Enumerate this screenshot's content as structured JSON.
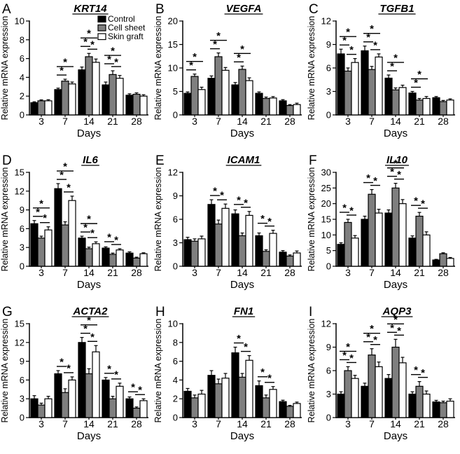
{
  "figure": {
    "ylabel": "Relative mRNA expression",
    "xlabel": "Days",
    "legend": [
      {
        "label": "Control",
        "color": "#000000"
      },
      {
        "label": "Cell sheet",
        "color": "#7f7f7f"
      },
      {
        "label": "Skin graft",
        "color": "#ffffff"
      }
    ]
  },
  "chart_data": [
    {
      "type": "bar",
      "panel": "A",
      "title": "KRT14",
      "xlabel": "Days",
      "ylabel": "Relative mRNA expression",
      "categories": [
        "3",
        "7",
        "14",
        "21",
        "28"
      ],
      "ylim": [
        0,
        10
      ],
      "ytick_step": 2,
      "grid": false,
      "legend_position": "top-right-inside",
      "show_legend": true,
      "series": [
        {
          "name": "Control",
          "color": "#000000",
          "values": [
            1.3,
            2.7,
            4.8,
            3.2,
            2.1
          ],
          "errors": [
            0.1,
            0.15,
            0.3,
            0.3,
            0.15
          ]
        },
        {
          "name": "Cell sheet",
          "color": "#7f7f7f",
          "values": [
            1.5,
            3.6,
            6.2,
            4.3,
            2.2
          ],
          "errors": [
            0.1,
            0.2,
            0.35,
            0.4,
            0.15
          ]
        },
        {
          "name": "Skin graft",
          "color": "#ffffff",
          "values": [
            1.5,
            3.3,
            5.6,
            3.9,
            2.0
          ],
          "errors": [
            0.12,
            0.2,
            0.35,
            0.3,
            0.15
          ]
        }
      ],
      "significance": [
        {
          "category": "7",
          "pairs": [
            [
              0,
              1
            ],
            [
              0,
              2
            ]
          ]
        },
        {
          "category": "14",
          "pairs": [
            [
              0,
              1
            ],
            [
              1,
              2
            ],
            [
              0,
              2
            ]
          ]
        },
        {
          "category": "21",
          "pairs": [
            [
              0,
              1
            ],
            [
              1,
              2
            ],
            [
              0,
              2
            ]
          ]
        }
      ]
    },
    {
      "type": "bar",
      "panel": "B",
      "title": "VEGFA",
      "xlabel": "Days",
      "ylabel": "Relative mRNA expression",
      "categories": [
        "3",
        "7",
        "14",
        "21",
        "28"
      ],
      "ylim": [
        0,
        20
      ],
      "ytick_step": 5,
      "grid": false,
      "show_legend": false,
      "series": [
        {
          "name": "Control",
          "color": "#000000",
          "values": [
            4.6,
            7.8,
            6.4,
            4.6,
            3.0
          ],
          "errors": [
            0.3,
            0.5,
            0.5,
            0.3,
            0.25
          ]
        },
        {
          "name": "Cell sheet",
          "color": "#7f7f7f",
          "values": [
            8.2,
            12.4,
            9.7,
            3.5,
            2.0
          ],
          "errors": [
            0.5,
            0.8,
            0.7,
            0.3,
            0.2
          ]
        },
        {
          "name": "Skin graft",
          "color": "#ffffff",
          "values": [
            5.4,
            9.5,
            7.3,
            3.6,
            2.2
          ],
          "errors": [
            0.5,
            0.6,
            0.6,
            0.3,
            0.3
          ]
        }
      ],
      "significance": [
        {
          "category": "3",
          "pairs": [
            [
              0,
              1
            ],
            [
              0,
              2
            ]
          ]
        },
        {
          "category": "7",
          "pairs": [
            [
              0,
              1
            ],
            [
              0,
              2
            ]
          ]
        },
        {
          "category": "14",
          "pairs": [
            [
              0,
              1
            ],
            [
              0,
              2
            ]
          ]
        }
      ]
    },
    {
      "type": "bar",
      "panel": "C",
      "title": "TGFB1",
      "xlabel": "Days",
      "ylabel": "Relative mRNA expression",
      "categories": [
        "3",
        "7",
        "14",
        "21",
        "28"
      ],
      "ylim": [
        0,
        12
      ],
      "ytick_step": 3,
      "grid": false,
      "show_legend": false,
      "series": [
        {
          "name": "Control",
          "color": "#000000",
          "values": [
            7.8,
            8.2,
            4.7,
            2.8,
            2.2
          ],
          "errors": [
            0.6,
            0.6,
            0.4,
            0.2,
            0.15
          ]
        },
        {
          "name": "Cell sheet",
          "color": "#7f7f7f",
          "values": [
            5.6,
            5.8,
            3.2,
            1.9,
            1.7
          ],
          "errors": [
            0.4,
            0.4,
            0.25,
            0.2,
            0.15
          ]
        },
        {
          "name": "Skin graft",
          "color": "#ffffff",
          "values": [
            6.7,
            7.4,
            3.5,
            2.1,
            1.9
          ],
          "errors": [
            0.5,
            0.4,
            0.3,
            0.25,
            0.15
          ]
        }
      ],
      "significance": [
        {
          "category": "3",
          "pairs": [
            [
              0,
              1
            ],
            [
              1,
              2
            ],
            [
              0,
              2
            ]
          ]
        },
        {
          "category": "7",
          "pairs": [
            [
              0,
              1
            ],
            [
              1,
              2
            ],
            [
              0,
              2
            ]
          ]
        },
        {
          "category": "14",
          "pairs": [
            [
              0,
              1
            ],
            [
              0,
              2
            ]
          ]
        },
        {
          "category": "21",
          "pairs": [
            [
              0,
              1
            ],
            [
              0,
              2
            ]
          ]
        }
      ]
    },
    {
      "type": "bar",
      "panel": "D",
      "title": "IL6",
      "xlabel": "Days",
      "ylabel": "Relative mRNA expression",
      "categories": [
        "3",
        "7",
        "14",
        "21",
        "28"
      ],
      "ylim": [
        0,
        15
      ],
      "ytick_step": 3,
      "grid": false,
      "show_legend": false,
      "series": [
        {
          "name": "Control",
          "color": "#000000",
          "values": [
            6.8,
            12.4,
            4.5,
            2.9,
            2.1
          ],
          "errors": [
            0.5,
            0.8,
            0.3,
            0.2,
            0.2
          ]
        },
        {
          "name": "Cell sheet",
          "color": "#7f7f7f",
          "values": [
            4.5,
            6.6,
            2.8,
            1.9,
            1.3
          ],
          "errors": [
            0.3,
            0.5,
            0.25,
            0.2,
            0.15
          ]
        },
        {
          "name": "Skin graft",
          "color": "#ffffff",
          "values": [
            5.8,
            10.5,
            3.6,
            2.6,
            2.0
          ],
          "errors": [
            0.5,
            0.7,
            0.3,
            0.2,
            0.15
          ]
        }
      ],
      "significance": [
        {
          "category": "3",
          "pairs": [
            [
              0,
              1
            ],
            [
              1,
              2
            ],
            [
              0,
              2
            ]
          ]
        },
        {
          "category": "7",
          "pairs": [
            [
              0,
              1
            ],
            [
              1,
              2
            ],
            [
              0,
              2
            ]
          ]
        },
        {
          "category": "14",
          "pairs": [
            [
              0,
              1
            ],
            [
              1,
              2
            ],
            [
              0,
              2
            ]
          ]
        },
        {
          "category": "21",
          "pairs": [
            [
              0,
              1
            ],
            [
              1,
              2
            ]
          ]
        }
      ]
    },
    {
      "type": "bar",
      "panel": "E",
      "title": "ICAM1",
      "xlabel": "Days",
      "ylabel": "Relative mRNA expression",
      "categories": [
        "3",
        "7",
        "14",
        "21",
        "28"
      ],
      "ylim": [
        0,
        12
      ],
      "ytick_step": 3,
      "grid": false,
      "show_legend": false,
      "series": [
        {
          "name": "Control",
          "color": "#000000",
          "values": [
            3.4,
            7.9,
            6.7,
            3.9,
            1.8
          ],
          "errors": [
            0.3,
            0.6,
            0.5,
            0.35,
            0.2
          ]
        },
        {
          "name": "Cell sheet",
          "color": "#7f7f7f",
          "values": [
            3.2,
            5.4,
            3.9,
            1.9,
            1.3
          ],
          "errors": [
            0.3,
            0.5,
            0.35,
            0.2,
            0.15
          ]
        },
        {
          "name": "Skin graft",
          "color": "#ffffff",
          "values": [
            3.5,
            7.4,
            6.5,
            4.2,
            1.7
          ],
          "errors": [
            0.35,
            0.55,
            0.5,
            0.4,
            0.25
          ]
        }
      ],
      "significance": [
        {
          "category": "7",
          "pairs": [
            [
              0,
              1
            ],
            [
              1,
              2
            ]
          ]
        },
        {
          "category": "14",
          "pairs": [
            [
              0,
              1
            ],
            [
              1,
              2
            ]
          ]
        },
        {
          "category": "21",
          "pairs": [
            [
              0,
              1
            ],
            [
              1,
              2
            ]
          ]
        }
      ]
    },
    {
      "type": "bar",
      "panel": "F",
      "title": "IL10",
      "xlabel": "Days",
      "ylabel": "Relative mRNA expression",
      "categories": [
        "3",
        "7",
        "14",
        "21",
        "28"
      ],
      "ylim": [
        0,
        30
      ],
      "ytick_step": 5,
      "grid": false,
      "show_legend": false,
      "series": [
        {
          "name": "Control",
          "color": "#000000",
          "values": [
            7,
            15,
            17,
            9,
            2
          ],
          "errors": [
            0.5,
            1,
            1,
            0.7,
            0.2
          ]
        },
        {
          "name": "Cell sheet",
          "color": "#7f7f7f",
          "values": [
            14,
            23,
            25,
            16,
            4
          ],
          "errors": [
            1,
            1.5,
            1.5,
            1.2,
            0.3
          ]
        },
        {
          "name": "Skin graft",
          "color": "#ffffff",
          "values": [
            9,
            17,
            20,
            10,
            2.5
          ],
          "errors": [
            0.8,
            1.2,
            1.3,
            1,
            0.3
          ]
        }
      ],
      "significance": [
        {
          "category": "3",
          "pairs": [
            [
              0,
              1
            ],
            [
              1,
              2
            ]
          ]
        },
        {
          "category": "7",
          "pairs": [
            [
              0,
              1
            ],
            [
              1,
              2
            ]
          ]
        },
        {
          "category": "14",
          "pairs": [
            [
              0,
              1
            ],
            [
              1,
              2
            ],
            [
              0,
              2
            ]
          ]
        },
        {
          "category": "21",
          "pairs": [
            [
              0,
              1
            ],
            [
              1,
              2
            ]
          ]
        }
      ]
    },
    {
      "type": "bar",
      "panel": "G",
      "title": "ACTA2",
      "xlabel": "Days",
      "ylabel": "Relative mRNA expression",
      "categories": [
        "3",
        "7",
        "14",
        "21",
        "28"
      ],
      "ylim": [
        0,
        15
      ],
      "ytick_step": 3,
      "grid": false,
      "show_legend": false,
      "series": [
        {
          "name": "Control",
          "color": "#000000",
          "values": [
            3.0,
            7.0,
            12.0,
            6.0,
            3.0
          ],
          "errors": [
            0.5,
            0.5,
            0.8,
            0.4,
            0.3
          ]
        },
        {
          "name": "Cell sheet",
          "color": "#7f7f7f",
          "values": [
            2.0,
            4.0,
            7.0,
            3.0,
            1.5
          ],
          "errors": [
            0.3,
            0.6,
            0.8,
            0.4,
            0.2
          ]
        },
        {
          "name": "Skin graft",
          "color": "#ffffff",
          "values": [
            3.0,
            6.0,
            10.5,
            5.0,
            2.7
          ],
          "errors": [
            0.4,
            0.5,
            1.0,
            0.5,
            0.3
          ]
        }
      ],
      "significance": [
        {
          "category": "7",
          "pairs": [
            [
              0,
              1
            ],
            [
              1,
              2
            ]
          ]
        },
        {
          "category": "14",
          "pairs": [
            [
              0,
              1
            ],
            [
              1,
              2
            ],
            [
              0,
              2
            ]
          ]
        },
        {
          "category": "21",
          "pairs": [
            [
              0,
              1
            ],
            [
              1,
              2
            ]
          ]
        },
        {
          "category": "28",
          "pairs": [
            [
              0,
              1
            ],
            [
              1,
              2
            ]
          ]
        }
      ]
    },
    {
      "type": "bar",
      "panel": "H",
      "title": "FN1",
      "xlabel": "Days",
      "ylabel": "Relative mRNA expression",
      "categories": [
        "3",
        "7",
        "14",
        "21",
        "28"
      ],
      "ylim": [
        0,
        10
      ],
      "ytick_step": 2,
      "grid": false,
      "show_legend": false,
      "series": [
        {
          "name": "Control",
          "color": "#000000",
          "values": [
            2.8,
            4.5,
            6.9,
            3.4,
            1.7
          ],
          "errors": [
            0.3,
            0.5,
            0.6,
            0.5,
            0.15
          ]
        },
        {
          "name": "Cell sheet",
          "color": "#7f7f7f",
          "values": [
            2.1,
            3.6,
            4.3,
            2.1,
            1.2
          ],
          "errors": [
            0.3,
            0.5,
            0.4,
            0.3,
            0.1
          ]
        },
        {
          "name": "Skin graft",
          "color": "#ffffff",
          "values": [
            2.5,
            4.2,
            6.1,
            3.0,
            1.5
          ],
          "errors": [
            0.4,
            0.5,
            0.5,
            0.3,
            0.15
          ]
        }
      ],
      "significance": [
        {
          "category": "14",
          "pairs": [
            [
              0,
              1
            ],
            [
              1,
              2
            ]
          ]
        },
        {
          "category": "21",
          "pairs": [
            [
              0,
              1
            ],
            [
              1,
              2
            ]
          ]
        }
      ]
    },
    {
      "type": "bar",
      "panel": "I",
      "title": "AQP3",
      "xlabel": "Days",
      "ylabel": "Relative mRNA expression",
      "categories": [
        "3",
        "7",
        "14",
        "21",
        "28"
      ],
      "ylim": [
        0,
        12
      ],
      "ytick_step": 3,
      "grid": false,
      "show_legend": false,
      "series": [
        {
          "name": "Control",
          "color": "#000000",
          "values": [
            3.0,
            4.0,
            5.0,
            3.0,
            2.0
          ],
          "errors": [
            0.3,
            0.4,
            0.5,
            0.3,
            0.2
          ]
        },
        {
          "name": "Cell sheet",
          "color": "#7f7f7f",
          "values": [
            6.0,
            8.0,
            9.0,
            4.0,
            1.9
          ],
          "errors": [
            0.5,
            0.8,
            1.0,
            0.6,
            0.2
          ]
        },
        {
          "name": "Skin graft",
          "color": "#ffffff",
          "values": [
            5.0,
            6.5,
            7.0,
            3.0,
            2.1
          ],
          "errors": [
            0.4,
            0.6,
            0.7,
            0.4,
            0.3
          ]
        }
      ],
      "significance": [
        {
          "category": "3",
          "pairs": [
            [
              0,
              1
            ],
            [
              1,
              2
            ],
            [
              0,
              2
            ]
          ]
        },
        {
          "category": "7",
          "pairs": [
            [
              0,
              1
            ],
            [
              1,
              2
            ],
            [
              0,
              2
            ]
          ]
        },
        {
          "category": "14",
          "pairs": [
            [
              0,
              1
            ],
            [
              1,
              2
            ],
            [
              0,
              2
            ]
          ]
        },
        {
          "category": "21",
          "pairs": [
            [
              0,
              1
            ],
            [
              1,
              2
            ]
          ]
        }
      ]
    }
  ]
}
